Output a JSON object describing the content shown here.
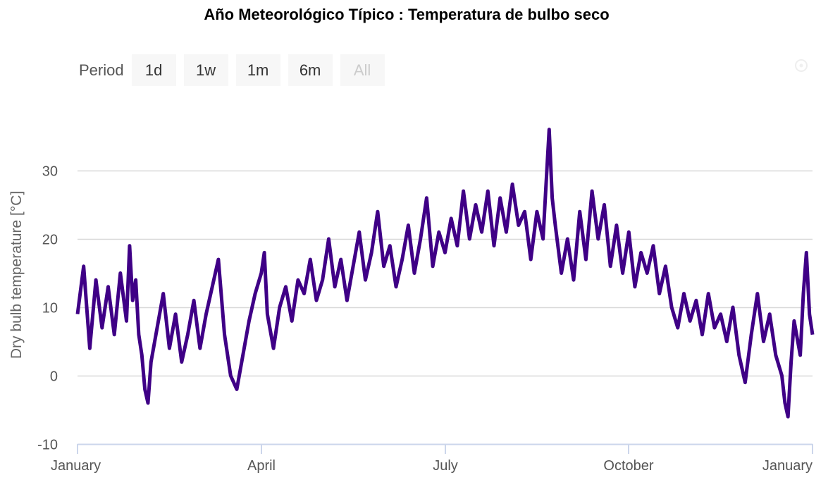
{
  "title": "Año Meteorológico Típico : Temperatura de bulbo seco",
  "range_selector": {
    "label": "Period",
    "buttons": [
      {
        "label": "1d",
        "enabled": true
      },
      {
        "label": "1w",
        "enabled": true
      },
      {
        "label": "1m",
        "enabled": true
      },
      {
        "label": "6m",
        "enabled": true
      },
      {
        "label": "All",
        "enabled": false
      }
    ]
  },
  "colors": {
    "series": "#3f0086",
    "grid": "#d8d8d8",
    "axis": "#ccd6eb"
  },
  "chart_data": {
    "type": "line",
    "title": "Año Meteorológico Típico : Temperatura de bulbo seco",
    "ylabel": "Dry bulb temperature [°C]",
    "xlabel": "",
    "ylim": [
      -10,
      40
    ],
    "yticks": [
      -10,
      0,
      10,
      20,
      30
    ],
    "xlim_month": [
      0,
      12
    ],
    "xticks": [
      {
        "month": 0,
        "label": "January"
      },
      {
        "month": 3,
        "label": "April"
      },
      {
        "month": 6,
        "label": "July"
      },
      {
        "month": 9,
        "label": "October"
      },
      {
        "month": 12,
        "label": "January"
      }
    ],
    "series": [
      {
        "name": "Dry bulb temperature",
        "x_unit": "month",
        "points": [
          [
            0.0,
            9
          ],
          [
            0.1,
            16
          ],
          [
            0.2,
            4
          ],
          [
            0.3,
            14
          ],
          [
            0.4,
            7
          ],
          [
            0.5,
            13
          ],
          [
            0.6,
            6
          ],
          [
            0.7,
            15
          ],
          [
            0.8,
            8
          ],
          [
            0.85,
            19
          ],
          [
            0.9,
            11
          ],
          [
            0.95,
            14
          ],
          [
            1.0,
            6
          ],
          [
            1.05,
            3
          ],
          [
            1.1,
            -2
          ],
          [
            1.15,
            -4
          ],
          [
            1.2,
            2
          ],
          [
            1.3,
            7
          ],
          [
            1.4,
            12
          ],
          [
            1.5,
            4
          ],
          [
            1.6,
            9
          ],
          [
            1.7,
            2
          ],
          [
            1.8,
            6
          ],
          [
            1.9,
            11
          ],
          [
            2.0,
            4
          ],
          [
            2.1,
            9
          ],
          [
            2.2,
            13
          ],
          [
            2.3,
            17
          ],
          [
            2.4,
            6
          ],
          [
            2.5,
            0
          ],
          [
            2.6,
            -2
          ],
          [
            2.7,
            3
          ],
          [
            2.8,
            8
          ],
          [
            2.9,
            12
          ],
          [
            3.0,
            15
          ],
          [
            3.05,
            18
          ],
          [
            3.1,
            9
          ],
          [
            3.2,
            4
          ],
          [
            3.3,
            10
          ],
          [
            3.4,
            13
          ],
          [
            3.5,
            8
          ],
          [
            3.6,
            14
          ],
          [
            3.7,
            12
          ],
          [
            3.8,
            17
          ],
          [
            3.9,
            11
          ],
          [
            4.0,
            14
          ],
          [
            4.1,
            20
          ],
          [
            4.2,
            13
          ],
          [
            4.3,
            17
          ],
          [
            4.4,
            11
          ],
          [
            4.5,
            16
          ],
          [
            4.6,
            21
          ],
          [
            4.7,
            14
          ],
          [
            4.8,
            18
          ],
          [
            4.9,
            24
          ],
          [
            5.0,
            16
          ],
          [
            5.1,
            19
          ],
          [
            5.2,
            13
          ],
          [
            5.3,
            17
          ],
          [
            5.4,
            22
          ],
          [
            5.5,
            15
          ],
          [
            5.6,
            20
          ],
          [
            5.7,
            26
          ],
          [
            5.8,
            16
          ],
          [
            5.9,
            21
          ],
          [
            6.0,
            18
          ],
          [
            6.1,
            23
          ],
          [
            6.2,
            19
          ],
          [
            6.3,
            27
          ],
          [
            6.4,
            20
          ],
          [
            6.5,
            25
          ],
          [
            6.6,
            21
          ],
          [
            6.7,
            27
          ],
          [
            6.8,
            19
          ],
          [
            6.9,
            26
          ],
          [
            7.0,
            21
          ],
          [
            7.1,
            28
          ],
          [
            7.2,
            22
          ],
          [
            7.3,
            24
          ],
          [
            7.4,
            17
          ],
          [
            7.5,
            24
          ],
          [
            7.6,
            20
          ],
          [
            7.65,
            28
          ],
          [
            7.7,
            36
          ],
          [
            7.75,
            26
          ],
          [
            7.8,
            22
          ],
          [
            7.9,
            15
          ],
          [
            8.0,
            20
          ],
          [
            8.1,
            14
          ],
          [
            8.2,
            24
          ],
          [
            8.3,
            17
          ],
          [
            8.4,
            27
          ],
          [
            8.5,
            20
          ],
          [
            8.6,
            25
          ],
          [
            8.7,
            16
          ],
          [
            8.8,
            22
          ],
          [
            8.9,
            15
          ],
          [
            9.0,
            21
          ],
          [
            9.1,
            13
          ],
          [
            9.2,
            18
          ],
          [
            9.3,
            15
          ],
          [
            9.4,
            19
          ],
          [
            9.5,
            12
          ],
          [
            9.6,
            16
          ],
          [
            9.7,
            10
          ],
          [
            9.8,
            7
          ],
          [
            9.9,
            12
          ],
          [
            10.0,
            8
          ],
          [
            10.1,
            11
          ],
          [
            10.2,
            6
          ],
          [
            10.3,
            12
          ],
          [
            10.4,
            7
          ],
          [
            10.5,
            9
          ],
          [
            10.6,
            5
          ],
          [
            10.7,
            10
          ],
          [
            10.8,
            3
          ],
          [
            10.9,
            -1
          ],
          [
            11.0,
            6
          ],
          [
            11.1,
            12
          ],
          [
            11.2,
            5
          ],
          [
            11.3,
            9
          ],
          [
            11.4,
            3
          ],
          [
            11.5,
            0
          ],
          [
            11.55,
            -4
          ],
          [
            11.6,
            -6
          ],
          [
            11.65,
            2
          ],
          [
            11.7,
            8
          ],
          [
            11.8,
            3
          ],
          [
            11.85,
            12
          ],
          [
            11.9,
            18
          ],
          [
            11.95,
            9
          ],
          [
            12.0,
            6
          ]
        ]
      }
    ]
  }
}
